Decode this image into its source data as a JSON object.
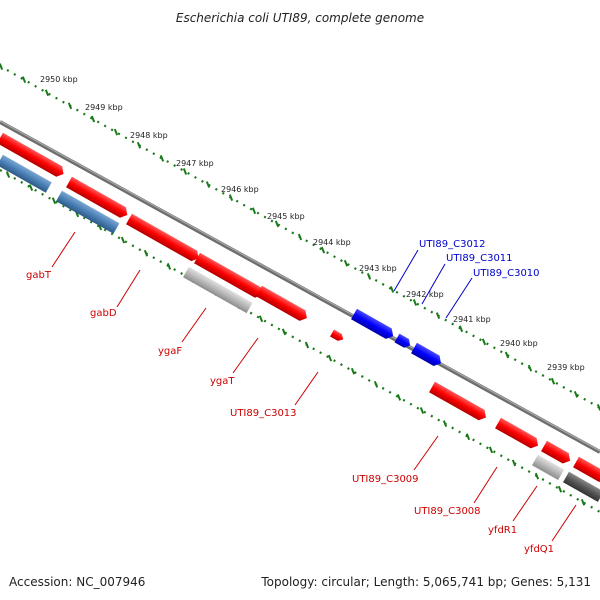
{
  "title": "Escherichia coli UTI89, complete genome",
  "accession": "Accession: NC_007946",
  "topology": "Topology: circular; Length: 5,065,741 bp; Genes: 5,131",
  "colors": {
    "forward": "#ff0000",
    "reverse": "#4a7fb5",
    "highlight": "#0000ff",
    "other": "#b0b0b0",
    "dark": "#555555",
    "ruler": "#1a7a1a",
    "label_red": "#cc0000",
    "label_blue": "#0000cc"
  },
  "ruler": {
    "ticks": [
      {
        "label": "2950 kbp"
      },
      {
        "label": "2949 kbp"
      },
      {
        "label": "2948 kbp"
      },
      {
        "label": "2947 kbp"
      },
      {
        "label": "2946 kbp"
      },
      {
        "label": "2945 kbp"
      },
      {
        "label": "2944 kbp"
      },
      {
        "label": "2943 kbp"
      },
      {
        "label": "2942 kbp"
      },
      {
        "label": "2941 kbp"
      },
      {
        "label": "2940 kbp"
      },
      {
        "label": "2939 kbp"
      }
    ]
  },
  "genes": [
    {
      "name": "gabT",
      "color": "red"
    },
    {
      "name": "gabD",
      "color": "red"
    },
    {
      "name": "ygaF",
      "color": "red"
    },
    {
      "name": "ygaT",
      "color": "red"
    },
    {
      "name": "UTI89_C3013",
      "color": "red"
    },
    {
      "name": "UTI89_C3012",
      "color": "blue"
    },
    {
      "name": "UTI89_C3011",
      "color": "blue"
    },
    {
      "name": "UTI89_C3010",
      "color": "blue"
    },
    {
      "name": "UTI89_C3009",
      "color": "red"
    },
    {
      "name": "UTI89_C3008",
      "color": "red"
    },
    {
      "name": "yfdR1",
      "color": "red"
    },
    {
      "name": "yfdQ1",
      "color": "red"
    }
  ]
}
